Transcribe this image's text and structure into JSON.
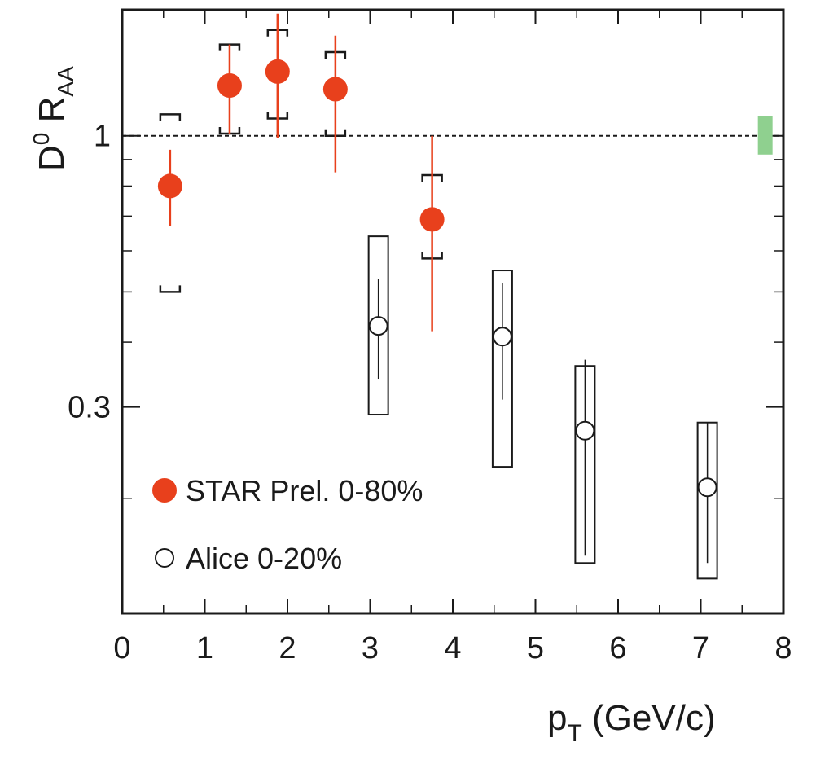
{
  "chart_data": {
    "type": "scatter",
    "title": "",
    "xlabel": "pT (GeV/c)",
    "xlabel_main": "p",
    "xlabel_sub": "T",
    "xlabel_unit": " (GeV/c)",
    "ylabel_main": "D",
    "ylabel_sup": "0",
    "ylabel_R": " R",
    "ylabel_sub": "AA",
    "xlim": [
      0,
      8
    ],
    "ylim_log": [
      0.12,
      1.75
    ],
    "y_scale": "log",
    "x_ticks": [
      "0",
      "1",
      "2",
      "3",
      "4",
      "5",
      "6",
      "7",
      "8"
    ],
    "y_ticks_labeled": [
      {
        "value": 1,
        "label": "1"
      },
      {
        "value": 0.3,
        "label": "0.3"
      }
    ],
    "y_ticks_unlabeled": [
      0.2,
      0.4,
      0.5,
      0.6,
      0.7,
      0.8,
      0.9
    ],
    "reference_line": {
      "y": 1,
      "style": "dashed"
    },
    "normalization_box": {
      "x": 7.78,
      "y_low": 0.92,
      "y_high": 1.09,
      "color": "#8fd08f"
    },
    "series": [
      {
        "name": "STAR Prel. 0-80%",
        "legend_label": "STAR Prel. 0-80%",
        "marker": "filled-circle",
        "color": "#e8401c",
        "points": [
          {
            "x": 0.58,
            "y": 0.8,
            "stat_low": 0.67,
            "stat_high": 0.94,
            "sys_low": 0.5,
            "sys_high": 1.1
          },
          {
            "x": 1.3,
            "y": 1.25,
            "stat_low": 1.01,
            "stat_high": 1.5,
            "sys_low": 1.01,
            "sys_high": 1.5
          },
          {
            "x": 1.88,
            "y": 1.33,
            "stat_low": 0.99,
            "stat_high": 1.72,
            "sys_low": 1.08,
            "sys_high": 1.6
          },
          {
            "x": 2.58,
            "y": 1.23,
            "stat_low": 0.85,
            "stat_high": 1.56,
            "sys_low": 1.0,
            "sys_high": 1.45
          },
          {
            "x": 3.75,
            "y": 0.69,
            "stat_low": 0.42,
            "stat_high": 1.0,
            "sys_low": 0.58,
            "sys_high": 0.84
          }
        ]
      },
      {
        "name": "Alice 0-20%",
        "legend_label": "Alice 0-20%",
        "marker": "open-circle",
        "color": "#1a1a1a",
        "points": [
          {
            "x": 3.1,
            "y": 0.43,
            "stat_low": 0.34,
            "stat_high": 0.53,
            "sys_low": 0.29,
            "sys_high": 0.64
          },
          {
            "x": 4.6,
            "y": 0.41,
            "stat_low": 0.31,
            "stat_high": 0.52,
            "sys_low": 0.23,
            "sys_high": 0.55
          },
          {
            "x": 5.6,
            "y": 0.27,
            "stat_low": 0.155,
            "stat_high": 0.37,
            "sys_low": 0.15,
            "sys_high": 0.36
          },
          {
            "x": 7.08,
            "y": 0.21,
            "stat_low": 0.15,
            "stat_high": 0.28,
            "sys_low": 0.14,
            "sys_high": 0.28
          }
        ]
      }
    ],
    "legend_position": "bottom-left"
  }
}
